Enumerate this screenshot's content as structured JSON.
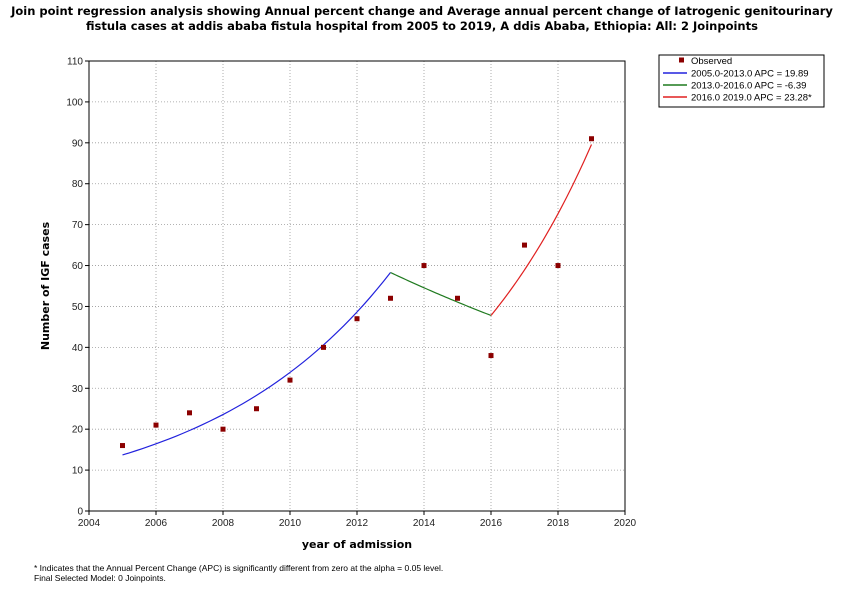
{
  "title_lines": [
    "Join point regression analysis showing Annual percent change and Average annual percent change of Iatrogenic genitourinary",
    "fistula cases at addis ababa fistula hospital from 2005 to 2019, A ddis Ababa, Ethiopia: All: 2 Joinpoints"
  ],
  "footnotes": [
    "* Indicates that the Annual Percent Change (APC) is significantly different from zero at the alpha = 0.05 level.",
    "Final Selected Model: 0 Joinpoints."
  ],
  "chart_data": {
    "type": "scatter",
    "xlabel": "year of admission",
    "ylabel": "Number of IGF cases",
    "xlim": [
      2004,
      2020
    ],
    "ylim": [
      0,
      110
    ],
    "xticks": [
      2004,
      2006,
      2008,
      2010,
      2012,
      2014,
      2016,
      2018,
      2020
    ],
    "yticks": [
      0,
      10,
      20,
      30,
      40,
      50,
      60,
      70,
      80,
      90,
      100,
      110
    ],
    "grid": true,
    "legend_position": "top-right",
    "observed": {
      "name": "Observed",
      "color": "#8b0000",
      "x": [
        2005,
        2006,
        2007,
        2008,
        2009,
        2010,
        2011,
        2012,
        2013,
        2014,
        2015,
        2016,
        2017,
        2018,
        2019
      ],
      "y": [
        16,
        21,
        24,
        20,
        25,
        32,
        40,
        47,
        52,
        60,
        52,
        38,
        65,
        60,
        91
      ]
    },
    "segments": [
      {
        "name": "2005.0-2013.0 APC =  19.89",
        "color": "#2222dd",
        "start": [
          2005,
          13.7
        ],
        "end": [
          2013,
          58.3
        ],
        "apc": 19.89
      },
      {
        "name": "2013.0-2016.0 APC =  -6.39",
        "color": "#1f7a1f",
        "start": [
          2013,
          58.3
        ],
        "end": [
          2016,
          47.8
        ],
        "apc": -6.39
      },
      {
        "name": "2016.0 2019.0 APC =  23.28*",
        "color": "#e02020",
        "start": [
          2016,
          47.8
        ],
        "end": [
          2019,
          89.6
        ],
        "apc": 23.28
      }
    ]
  }
}
